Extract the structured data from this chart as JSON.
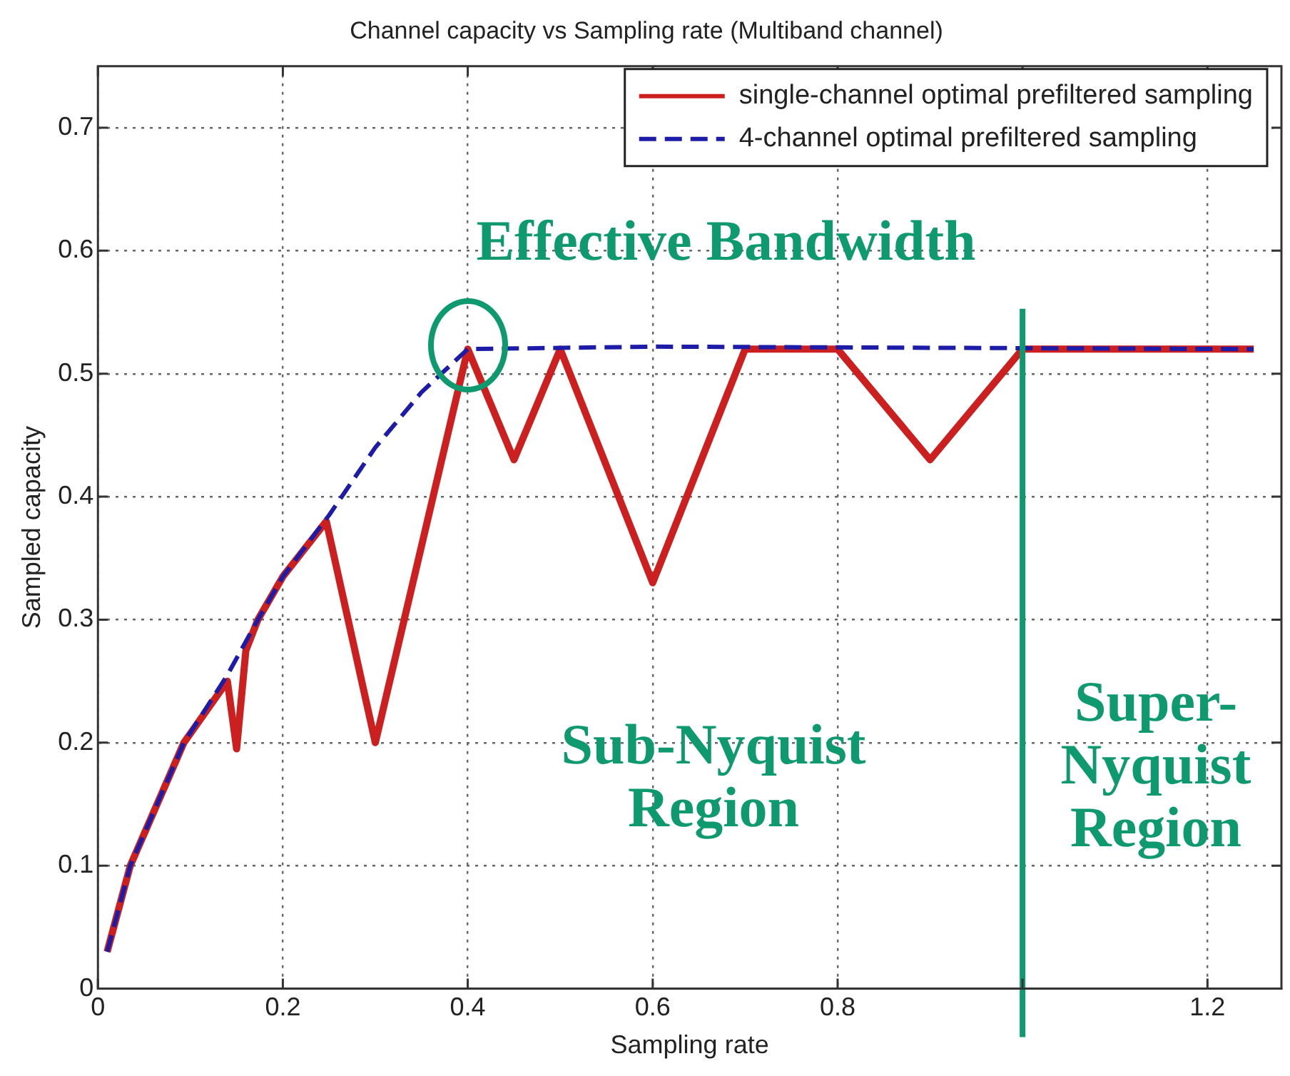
{
  "chart_data": {
    "type": "line",
    "title": "Channel capacity vs Sampling rate (Multiband channel)",
    "xlabel": "Sampling rate",
    "ylabel": "Sampled capacity",
    "series": [
      {
        "name": "single-channel optimal prefiltered sampling",
        "color": "#cc1f1f",
        "line_style": "solid",
        "x": [
          0.01,
          0.035,
          0.093,
          0.14,
          0.15,
          0.16,
          0.173,
          0.2,
          0.247,
          0.3,
          0.4,
          0.45,
          0.5,
          0.6,
          0.7,
          0.8,
          0.9,
          1,
          1.25
        ],
        "values": [
          0.03,
          0.1,
          0.2,
          0.25,
          0.195,
          0.275,
          0.3,
          0.335,
          0.38,
          0.2,
          0.52,
          0.43,
          0.52,
          0.33,
          0.52,
          0.52,
          0.43,
          0.52,
          0.52
        ]
      },
      {
        "name": "4-channel optimal prefiltered sampling",
        "color": "#1c1ca8",
        "line_style": "dashed",
        "x": [
          0.01,
          0.035,
          0.093,
          0.14,
          0.173,
          0.2,
          0.25,
          0.3,
          0.35,
          0.4,
          0.6,
          1.25
        ],
        "values": [
          0.03,
          0.1,
          0.2,
          0.255,
          0.3,
          0.335,
          0.385,
          0.44,
          0.485,
          0.52,
          0.522,
          0.52
        ]
      }
    ],
    "xlim": [
      0,
      1.28
    ],
    "xticks": [
      0,
      0.2,
      0.4,
      0.6,
      0.8,
      {
        "value": 1,
        "label": null
      },
      1.2
    ],
    "ylim": [
      0,
      0.75
    ],
    "yticks": [
      0,
      0.1,
      0.2,
      0.3,
      0.4,
      0.5,
      0.6,
      0.7
    ],
    "grid": true,
    "legend": "top right",
    "marker": "none",
    "ref_lines": [
      {
        "axis": "x",
        "value": 1,
        "color": "#0e9a6e"
      }
    ],
    "annotations": [
      {
        "text": "Effective Bandwidth",
        "x": 0.4,
        "y": 0.52
      },
      "Sub-Nyquist Region",
      "Super-Nyquist Region"
    ]
  }
}
